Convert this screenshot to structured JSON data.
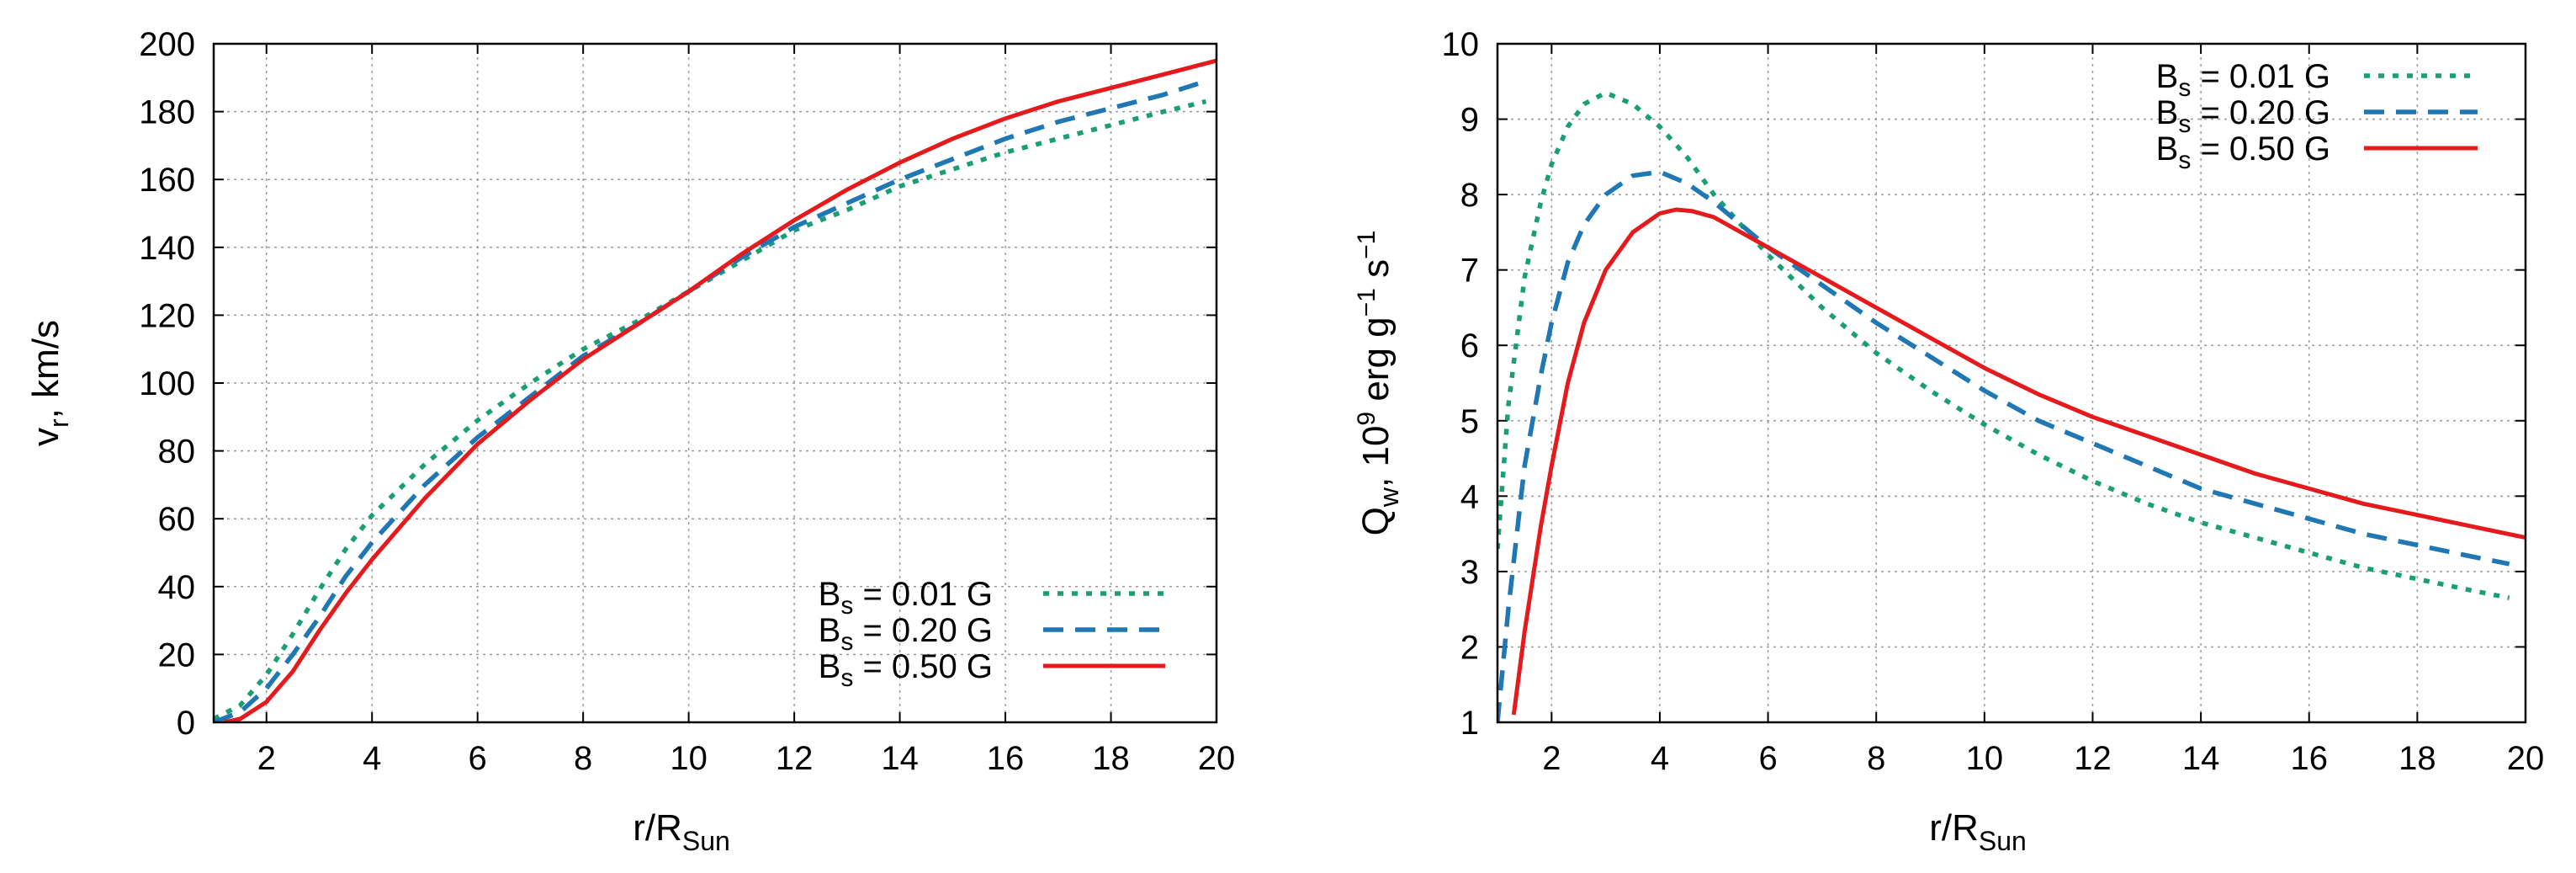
{
  "chart_data": [
    {
      "type": "line",
      "xlabel": "r/R",
      "xlabel_sub": "Sun",
      "ylabel": "v",
      "ylabel_sub": "r",
      "ylabel_rest": ", km/s",
      "xlim": [
        1,
        20
      ],
      "ylim": [
        0,
        200
      ],
      "xticks": [
        2,
        4,
        6,
        8,
        10,
        12,
        14,
        16,
        18,
        20
      ],
      "yticks": [
        0,
        20,
        40,
        60,
        80,
        100,
        120,
        140,
        160,
        180,
        200
      ],
      "grid": true,
      "legend_position": "bottom-right",
      "series": [
        {
          "name": "B",
          "name_sub": "s",
          "name_rest": " = 0.01 G",
          "color": "#1a9e77",
          "style": "dotted",
          "x": [
            1,
            1.5,
            2,
            2.5,
            3,
            3.5,
            4,
            5,
            6,
            7,
            8,
            9,
            10,
            11,
            12,
            13,
            14,
            15,
            16,
            17,
            18,
            19,
            19.8
          ],
          "y": [
            1,
            5,
            14,
            26,
            39,
            51,
            61,
            76,
            89,
            100,
            110,
            118,
            127,
            136,
            145,
            151,
            158,
            163,
            168,
            172,
            176,
            180,
            183
          ]
        },
        {
          "name": "B",
          "name_sub": "s",
          "name_rest": " = 0.20 G",
          "color": "#1f77b4",
          "style": "dashed",
          "x": [
            1,
            1.5,
            2,
            2.5,
            3,
            3.5,
            4,
            5,
            6,
            7,
            8,
            9,
            10,
            11,
            12,
            13,
            14,
            15,
            16,
            17,
            18,
            19,
            19.8
          ],
          "y": [
            0,
            3,
            10,
            20,
            31,
            43,
            53,
            70,
            84,
            96,
            108,
            117,
            127,
            137,
            146,
            153,
            160,
            166,
            172,
            177,
            181,
            185,
            189
          ]
        },
        {
          "name": "B",
          "name_sub": "s",
          "name_rest": " = 0.50 G",
          "color": "#e41a1c",
          "style": "solid",
          "x": [
            1.2,
            1.5,
            2,
            2.5,
            3,
            3.5,
            4,
            5,
            6,
            7,
            8,
            9,
            10,
            11,
            12,
            13,
            14,
            15,
            16,
            17,
            18,
            19,
            20
          ],
          "y": [
            0,
            1,
            6,
            15,
            27,
            38,
            48,
            66,
            82,
            95,
            107,
            117,
            127,
            138,
            148,
            157,
            165,
            172,
            178,
            183,
            187,
            191,
            195
          ]
        }
      ]
    },
    {
      "type": "line",
      "xlabel": "r/R",
      "xlabel_sub": "Sun",
      "ylabel": "Q",
      "ylabel_sub": "w",
      "ylabel_rest1": ", 10",
      "ylabel_sup1": "9",
      "ylabel_rest2": " erg g",
      "ylabel_sup2": "−1",
      "ylabel_rest3": " s",
      "ylabel_sup3": "−1",
      "xlim": [
        1,
        20
      ],
      "ylim": [
        1,
        10
      ],
      "xticks": [
        2,
        4,
        6,
        8,
        10,
        12,
        14,
        16,
        18,
        20
      ],
      "yticks": [
        1,
        2,
        3,
        4,
        5,
        6,
        7,
        8,
        9,
        10
      ],
      "grid": true,
      "legend_position": "top-right",
      "series": [
        {
          "name": "B",
          "name_sub": "s",
          "name_rest": " = 0.01 G",
          "color": "#1a9e77",
          "style": "dotted",
          "x": [
            1,
            1.2,
            1.5,
            1.8,
            2,
            2.3,
            2.6,
            3,
            3.5,
            4,
            4.5,
            5,
            5.5,
            6,
            7,
            8,
            9,
            10,
            11,
            12,
            13,
            14,
            15,
            16,
            17,
            18,
            19,
            19.7
          ],
          "y": [
            3.3,
            5.2,
            6.9,
            7.9,
            8.4,
            8.9,
            9.2,
            9.35,
            9.2,
            8.9,
            8.5,
            8.0,
            7.6,
            7.2,
            6.5,
            5.9,
            5.4,
            4.95,
            4.55,
            4.2,
            3.9,
            3.65,
            3.45,
            3.25,
            3.05,
            2.9,
            2.75,
            2.65
          ]
        },
        {
          "name": "B",
          "name_sub": "s",
          "name_rest": " = 0.20 G",
          "color": "#1f77b4",
          "style": "dashed",
          "x": [
            1,
            1.2,
            1.5,
            1.8,
            2,
            2.3,
            2.6,
            3,
            3.5,
            4,
            4.5,
            5,
            5.5,
            6,
            7,
            8,
            9,
            10,
            11,
            12,
            13,
            14,
            15,
            16,
            17,
            18,
            19,
            19.7
          ],
          "y": [
            1.0,
            2.5,
            4.4,
            5.6,
            6.3,
            7.1,
            7.6,
            8.0,
            8.25,
            8.3,
            8.15,
            7.9,
            7.6,
            7.3,
            6.8,
            6.3,
            5.85,
            5.4,
            5.0,
            4.7,
            4.4,
            4.1,
            3.9,
            3.7,
            3.5,
            3.35,
            3.2,
            3.1
          ]
        },
        {
          "name": "B",
          "name_sub": "s",
          "name_rest": " = 0.50 G",
          "color": "#e41a1c",
          "style": "solid",
          "x": [
            1.3,
            1.5,
            1.8,
            2,
            2.3,
            2.6,
            3,
            3.5,
            4,
            4.3,
            4.6,
            5,
            5.5,
            6,
            7,
            8,
            9,
            10,
            11,
            12,
            13,
            14,
            15,
            16,
            17,
            18,
            19,
            20
          ],
          "y": [
            1.1,
            2.2,
            3.6,
            4.4,
            5.5,
            6.3,
            7.0,
            7.5,
            7.75,
            7.8,
            7.78,
            7.7,
            7.5,
            7.3,
            6.9,
            6.5,
            6.1,
            5.7,
            5.35,
            5.05,
            4.8,
            4.55,
            4.3,
            4.1,
            3.9,
            3.75,
            3.6,
            3.45
          ]
        }
      ]
    }
  ]
}
